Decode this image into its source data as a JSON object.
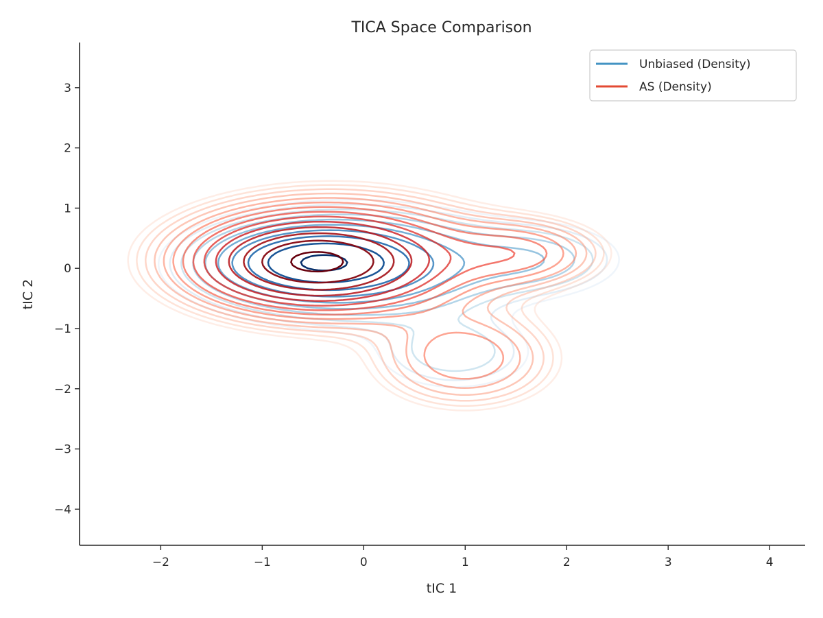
{
  "chart_data": {
    "type": "contour",
    "title": "TICA Space Comparison",
    "xlabel": "tIC 1",
    "ylabel": "tIC 2",
    "xlim": [
      -2.8,
      4.35
    ],
    "ylim": [
      -4.6,
      3.75
    ],
    "xticks": [
      -2,
      -1,
      0,
      1,
      2,
      3,
      4
    ],
    "yticks": [
      -4,
      -3,
      -2,
      -1,
      0,
      1,
      2,
      3
    ],
    "xtick_labels": [
      "−2",
      "−1",
      "0",
      "1",
      "2",
      "3",
      "4"
    ],
    "ytick_labels": [
      "−4",
      "−3",
      "−2",
      "−1",
      "0",
      "1",
      "2",
      "3"
    ],
    "grid": false,
    "legend_position": "top-right",
    "series": [
      {
        "name": "Unbiased (Density)",
        "colormap": "Blues",
        "legend_color": "#4393c3",
        "levels": 10,
        "components": [
          {
            "weight": 0.55,
            "mean": [
              -0.45,
              0.1
            ],
            "sd": [
              0.52,
              0.3
            ]
          },
          {
            "weight": 0.3,
            "mean": [
              -0.1,
              0.05
            ],
            "sd": [
              0.85,
              0.5
            ]
          },
          {
            "weight": 0.1,
            "mean": [
              1.7,
              0.15
            ],
            "sd": [
              0.5,
              0.35
            ]
          },
          {
            "weight": 0.08,
            "mean": [
              0.9,
              -1.4
            ],
            "sd": [
              0.5,
              0.4
            ]
          }
        ]
      },
      {
        "name": "AS (Density)",
        "colormap": "Reds",
        "legend_color": "#e34a33",
        "levels": 14,
        "components": [
          {
            "weight": 0.55,
            "mean": [
              -0.5,
              0.1
            ],
            "sd": [
              0.6,
              0.38
            ]
          },
          {
            "weight": 0.3,
            "mean": [
              -0.3,
              0.15
            ],
            "sd": [
              0.9,
              0.6
            ]
          },
          {
            "weight": 0.13,
            "mean": [
              1.55,
              0.25
            ],
            "sd": [
              0.5,
              0.35
            ]
          },
          {
            "weight": 0.13,
            "mean": [
              1.0,
              -1.5
            ],
            "sd": [
              0.55,
              0.5
            ]
          }
        ]
      }
    ]
  }
}
